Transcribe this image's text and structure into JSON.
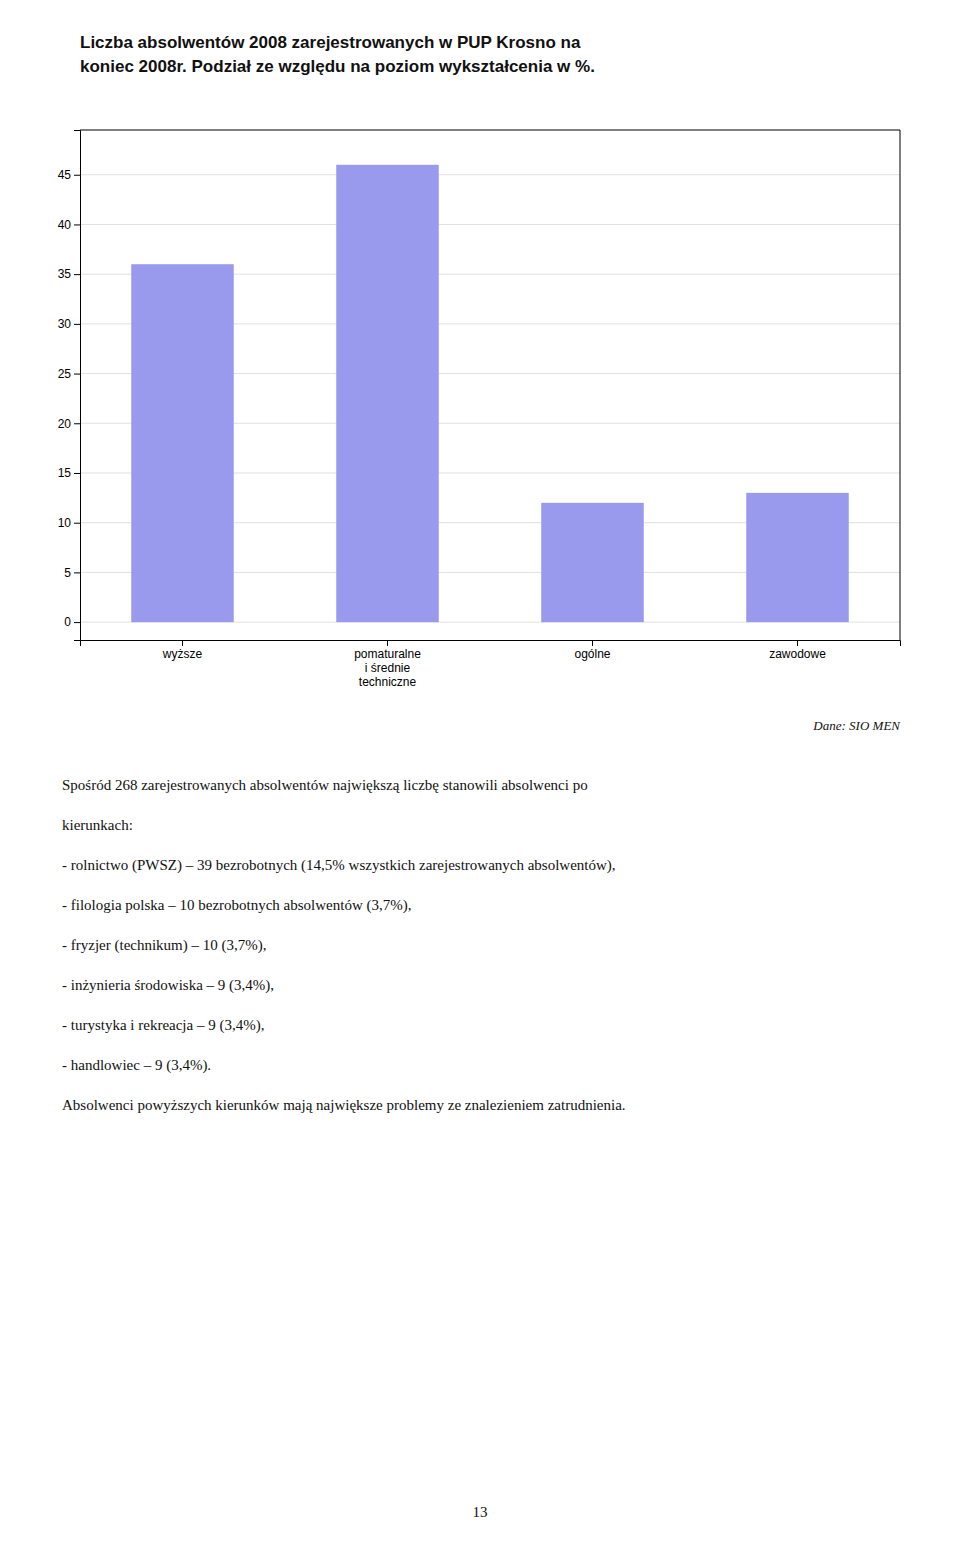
{
  "chart_data": {
    "type": "bar",
    "title": "Liczba absolwentów 2008 zarejestrowanych w PUP Krosno na\nkoniec 2008r. Podział ze względu na poziom wykształcenia w %.",
    "categories": [
      "wyższe",
      "pomaturalne\ni średnie\ntechniczne",
      "ogólne",
      "zawodowe"
    ],
    "values": [
      36,
      46,
      12,
      13
    ],
    "color": "#9999ee",
    "ylim": [
      -1.8,
      49.5
    ],
    "yticks": [
      0,
      5,
      10,
      15,
      20,
      25,
      30,
      35,
      40,
      45
    ],
    "grid": true,
    "annotations": [
      "Dane: SIO MEN",
      "Spośród 268 zarejestrowanych absolwentów największą liczbę stanowili absolwenci po",
      "kierunkach:",
      "- rolnictwo (PWSZ) – 39 bezrobotnych (14,5% wszystkich zarejestrowanych absolwentów),",
      "- filologia polska – 10 bezrobotnych absolwentów (3,7%),",
      "- fryzjer (technikum) – 10 (3,7%),",
      "- inżynieria środowiska – 9 (3,4%),",
      "- turystyka i rekreacja – 9 (3,4%),",
      "- handlowiec – 9 (3,4%).",
      "Absolwenci powyższych kierunków mają największe problemy ze znalezieniem zatrudnienia.",
      "13"
    ]
  }
}
